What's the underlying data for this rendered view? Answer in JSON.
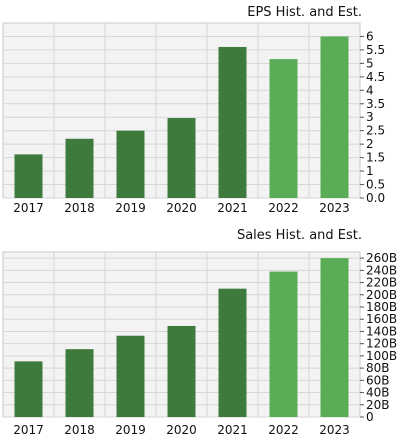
{
  "chart_data": [
    {
      "type": "bar",
      "title": "EPS Hist. and Est.",
      "categories": [
        "2017",
        "2018",
        "2019",
        "2020",
        "2021",
        "2022",
        "2023"
      ],
      "values": [
        1.62,
        2.2,
        2.5,
        2.97,
        5.61,
        5.16,
        6.0
      ],
      "estimate_flags": [
        false,
        false,
        false,
        false,
        false,
        true,
        true
      ],
      "ylim": [
        0,
        6.5
      ],
      "yticks": [
        "0.0",
        "0.5",
        "1",
        "1.5",
        "2",
        "2.5",
        "3",
        "3.5",
        "4",
        "4.5",
        "5",
        "5.5",
        "6"
      ],
      "ytick_values": [
        0,
        0.5,
        1,
        1.5,
        2,
        2.5,
        3,
        3.5,
        4,
        4.5,
        5,
        5.5,
        6
      ],
      "grid": true,
      "colors": {
        "historical": "#3e7a3c",
        "estimate": "#5aad56",
        "plot_bg": "#f3f3f3",
        "grid": "#d6d6d6"
      }
    },
    {
      "type": "bar",
      "title": "Sales Hist. and Est.",
      "categories": [
        "2017",
        "2018",
        "2019",
        "2020",
        "2021",
        "2022",
        "2023"
      ],
      "values": [
        91,
        111,
        133,
        149,
        210,
        238,
        260
      ],
      "estimate_flags": [
        false,
        false,
        false,
        false,
        false,
        true,
        true
      ],
      "ylim": [
        0,
        270
      ],
      "yticks": [
        "0",
        "20B",
        "40B",
        "60B",
        "80B",
        "100B",
        "120B",
        "140B",
        "160B",
        "180B",
        "200B",
        "220B",
        "240B",
        "260B"
      ],
      "ytick_values": [
        0,
        20,
        40,
        60,
        80,
        100,
        120,
        140,
        160,
        180,
        200,
        220,
        240,
        260
      ],
      "grid": true,
      "colors": {
        "historical": "#3e7a3c",
        "estimate": "#5aad56",
        "plot_bg": "#f3f3f3",
        "grid": "#d6d6d6"
      }
    }
  ]
}
